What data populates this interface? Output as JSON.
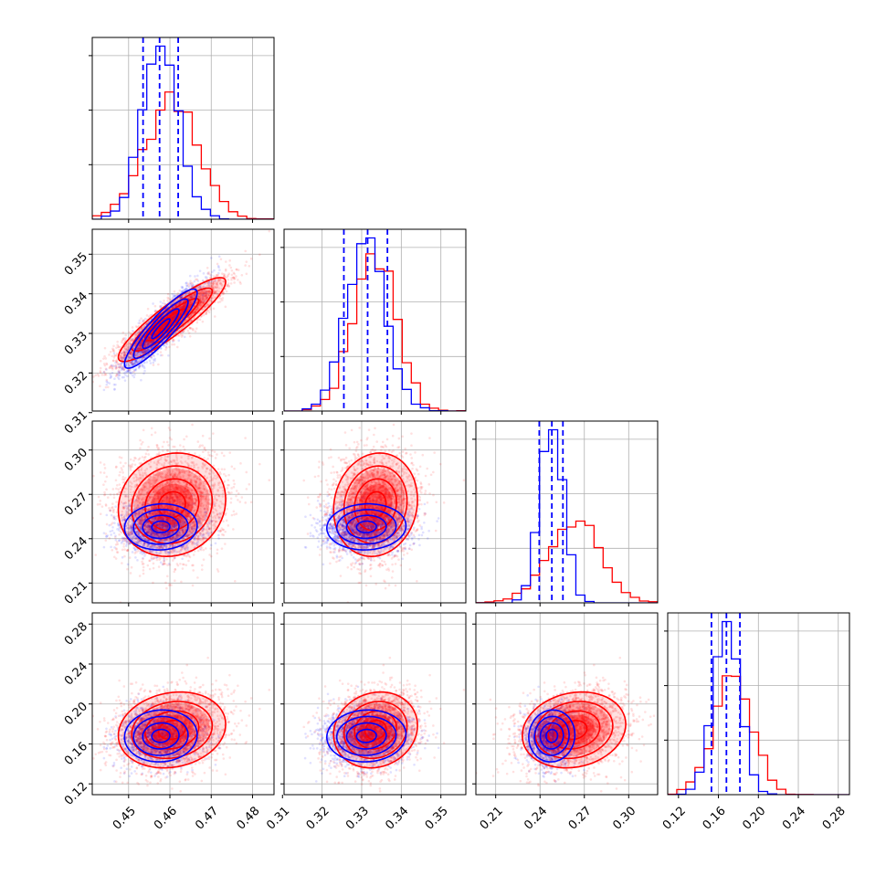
{
  "colors": {
    "series_a": "#ff0000",
    "series_b": "#0000ff",
    "grid": "#b0b0b0"
  },
  "chart_data": {
    "type": "corner",
    "params": [
      {
        "ticks": [
          0.45,
          0.46,
          0.47,
          0.48
        ],
        "tick_labels": [
          "0.45",
          "0.46",
          "0.47",
          "0.48"
        ],
        "range": [
          0.4412,
          0.4852
        ]
      },
      {
        "ticks": [
          0.31,
          0.32,
          0.33,
          0.34,
          0.35
        ],
        "tick_labels": [
          "0.31",
          "0.32",
          "0.33",
          "0.34",
          "0.35"
        ],
        "range": [
          0.3104,
          0.3563
        ]
      },
      {
        "ticks": [
          0.21,
          0.24,
          0.27,
          0.3
        ],
        "tick_labels": [
          "0.21",
          "0.24",
          "0.27",
          "0.30"
        ],
        "range": [
          0.1966,
          0.3196
        ]
      },
      {
        "ticks": [
          0.12,
          0.16,
          0.2,
          0.24,
          0.28
        ],
        "tick_labels": [
          "0.12",
          "0.16",
          "0.20",
          "0.24",
          "0.28"
        ],
        "range": [
          0.1092,
          0.2912
        ]
      }
    ],
    "series": [
      {
        "color": "#ff0000",
        "means": [
          0.4605,
          0.3335,
          0.263,
          0.174
        ],
        "stds": [
          0.0065,
          0.0053,
          0.0175,
          0.019
        ],
        "correlations": [
          [
            1,
            0.9,
            0.1,
            0.15
          ],
          [
            0.9,
            1,
            0.1,
            0.12
          ],
          [
            0.1,
            0.1,
            1,
            0.15
          ],
          [
            0.15,
            0.12,
            0.15,
            1
          ]
        ]
      },
      {
        "color": "#0000ff",
        "means": [
          0.4578,
          0.3312,
          0.248,
          0.168
        ],
        "stds": [
          0.0044,
          0.005,
          0.0078,
          0.013
        ],
        "correlations": [
          [
            1,
            0.9,
            0.05,
            0.05
          ],
          [
            0.9,
            1,
            0.05,
            0.05
          ],
          [
            0.05,
            0.05,
            1,
            0.05
          ],
          [
            0.05,
            0.05,
            0.05,
            1
          ]
        ],
        "quantiles": [
          [
            0.4535,
            0.4575,
            0.462
          ],
          [
            0.3255,
            0.3315,
            0.3365
          ],
          [
            0.2395,
            0.248,
            0.2555
          ],
          [
            0.153,
            0.168,
            0.1815
          ]
        ]
      }
    ],
    "grid": true,
    "legend": "none"
  }
}
